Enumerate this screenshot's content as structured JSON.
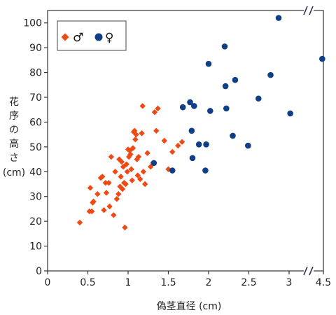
{
  "chart_data": {
    "type": "scatter",
    "xlabel": "偽茎直径 (cm)",
    "ylabel": [
      "花",
      "序",
      "の",
      "高",
      "さ",
      "(cm)"
    ],
    "xlim": [
      0,
      4.5
    ],
    "ylim": [
      0,
      105
    ],
    "axis_break": "x between 3 and 4.5",
    "x_ticks": [
      {
        "value": 0,
        "label": "0"
      },
      {
        "value": 0.5,
        "label": "0.5"
      },
      {
        "value": 1,
        "label": "1"
      },
      {
        "value": 1.5,
        "label": "1.5"
      },
      {
        "value": 2,
        "label": "2"
      },
      {
        "value": 2.5,
        "label": "2.5"
      },
      {
        "value": 3,
        "label": "3"
      },
      {
        "value": 4.5,
        "label": "4.5"
      }
    ],
    "y_ticks": [
      0,
      10,
      20,
      30,
      40,
      50,
      60,
      70,
      80,
      90,
      100
    ],
    "legend": {
      "position": "top-left"
    },
    "series": [
      {
        "name": "♂",
        "marker": "diamond",
        "color": "#f04a14",
        "points": [
          [
            0.4,
            19.5
          ],
          [
            0.52,
            24
          ],
          [
            0.55,
            24
          ],
          [
            0.53,
            33.5
          ],
          [
            0.56,
            27.5
          ],
          [
            0.57,
            28
          ],
          [
            0.62,
            31
          ],
          [
            0.66,
            37.5
          ],
          [
            0.68,
            38
          ],
          [
            0.7,
            24.5
          ],
          [
            0.72,
            35.5
          ],
          [
            0.73,
            31.5
          ],
          [
            0.76,
            35.5
          ],
          [
            0.77,
            26
          ],
          [
            0.79,
            46
          ],
          [
            0.82,
            22.5
          ],
          [
            0.84,
            40
          ],
          [
            0.86,
            29
          ],
          [
            0.88,
            31
          ],
          [
            0.89,
            45
          ],
          [
            0.9,
            34
          ],
          [
            0.91,
            38
          ],
          [
            0.92,
            44
          ],
          [
            0.93,
            33
          ],
          [
            0.94,
            42
          ],
          [
            0.95,
            35.5
          ],
          [
            0.96,
            17.5
          ],
          [
            0.97,
            35
          ],
          [
            0.98,
            43
          ],
          [
            0.99,
            40
          ],
          [
            1.0,
            49
          ],
          [
            1.01,
            46
          ],
          [
            1.02,
            48.5
          ],
          [
            1.03,
            47
          ],
          [
            1.04,
            41
          ],
          [
            1.05,
            36.5
          ],
          [
            1.06,
            49.5
          ],
          [
            1.07,
            56
          ],
          [
            1.08,
            56.5
          ],
          [
            1.09,
            53
          ],
          [
            1.1,
            55
          ],
          [
            1.11,
            45
          ],
          [
            1.12,
            38.5
          ],
          [
            1.13,
            46
          ],
          [
            1.15,
            37
          ],
          [
            1.17,
            55.5
          ],
          [
            1.18,
            66.5
          ],
          [
            1.19,
            40
          ],
          [
            1.21,
            35
          ],
          [
            1.24,
            47.5
          ],
          [
            1.28,
            42
          ],
          [
            1.31,
            43.5
          ],
          [
            1.33,
            64
          ],
          [
            1.35,
            56.5
          ],
          [
            1.37,
            65.5
          ],
          [
            1.45,
            52.5
          ],
          [
            1.5,
            41
          ],
          [
            1.55,
            48
          ],
          [
            1.62,
            50.5
          ],
          [
            1.67,
            52
          ]
        ]
      },
      {
        "name": "♀",
        "marker": "circle",
        "color": "#0f3f85",
        "points": [
          [
            1.32,
            43.5
          ],
          [
            1.55,
            40.5
          ],
          [
            1.68,
            66
          ],
          [
            1.77,
            68
          ],
          [
            1.79,
            56.5
          ],
          [
            1.8,
            45.5
          ],
          [
            1.82,
            66.5
          ],
          [
            1.88,
            51
          ],
          [
            1.96,
            40.5
          ],
          [
            1.97,
            51
          ],
          [
            2.0,
            83.5
          ],
          [
            2.02,
            64.5
          ],
          [
            2.2,
            90.5
          ],
          [
            2.21,
            74.5
          ],
          [
            2.22,
            65.5
          ],
          [
            2.3,
            54.5
          ],
          [
            2.33,
            77
          ],
          [
            2.49,
            50.5
          ],
          [
            2.62,
            69.5
          ],
          [
            2.77,
            79
          ],
          [
            2.87,
            102
          ],
          [
            3.05,
            63.5
          ],
          [
            4.45,
            85.5
          ]
        ]
      }
    ]
  }
}
